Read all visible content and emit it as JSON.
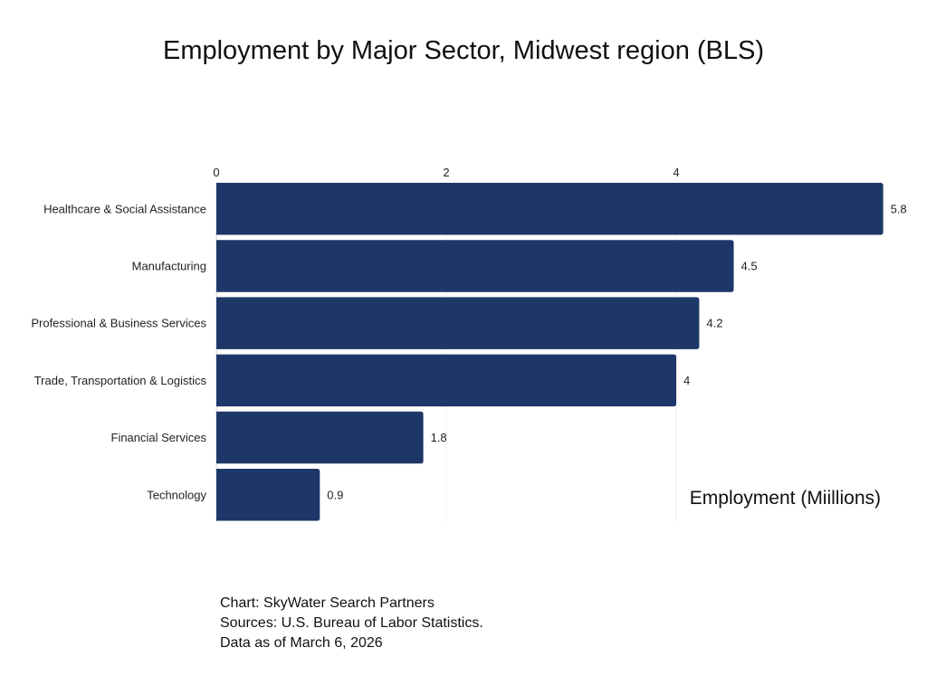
{
  "chart_data": {
    "type": "bar",
    "orientation": "horizontal",
    "title": "Employment by Major Sector, Midwest region (BLS)",
    "xlabel": "Employment (Miillions)",
    "ylabel": "",
    "categories": [
      "Healthcare & Social Assistance",
      "Manufacturing",
      "Professional & Business Services",
      "Trade, Transportation & Logistics",
      "Financial Services",
      "Technology"
    ],
    "values": [
      5.8,
      4.5,
      4.2,
      4,
      1.8,
      0.9
    ],
    "value_labels": [
      "5.8",
      "4.5",
      "4.2",
      "4",
      "1.8",
      "0.9"
    ],
    "xticks": [
      0,
      2,
      4
    ],
    "xlim": [
      0,
      5.8
    ],
    "x_axis_position": "top",
    "grid": true,
    "bar_color": "#1d3768"
  },
  "caption": {
    "line1": "Chart: SkyWater Search Partners",
    "line2": "Sources: U.S. Bureau of Labor Statistics.",
    "line3": "Data as of March 6, 2026"
  }
}
